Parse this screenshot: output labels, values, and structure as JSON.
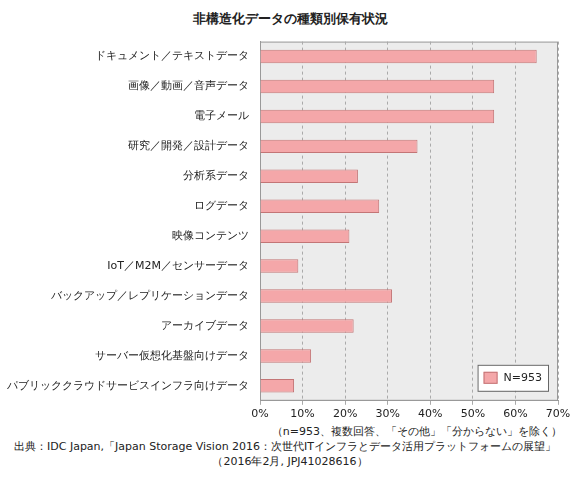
{
  "chart_data": {
    "type": "bar",
    "orientation": "horizontal",
    "title": "非構造化データの種類別保有状況",
    "categories": [
      "ドキュメント／テキストデータ",
      "画像／動画／音声データ",
      "電子メール",
      "研究／開発／設計データ",
      "分析系データ",
      "ログデータ",
      "映像コンテンツ",
      "IoT／M2M／センサーデータ",
      "バックアップ／レプリケーションデータ",
      "アーカイブデータ",
      "サーバー仮想化基盤向けデータ",
      "パブリッククラウドサービスインフラ向けデータ"
    ],
    "series": [
      {
        "name": "N=953",
        "color": "#f4a7a9",
        "values": [
          65,
          55,
          55,
          37,
          23,
          28,
          21,
          9,
          31,
          22,
          12,
          8
        ]
      }
    ],
    "xlim": [
      0,
      70
    ],
    "xticks": [
      {
        "value": 0,
        "label": "0%"
      },
      {
        "value": 10,
        "label": "10%"
      },
      {
        "value": 20,
        "label": "20%"
      },
      {
        "value": 30,
        "label": "30%"
      },
      {
        "value": 40,
        "label": "40%"
      },
      {
        "value": 50,
        "label": "50%"
      },
      {
        "value": 60,
        "label": "60%"
      },
      {
        "value": 70,
        "label": "70%"
      }
    ],
    "grid": true,
    "legend": "lower right",
    "note": "（n=953、複数回答、「その他」「分からない」を除く）",
    "source": [
      "出典：IDC Japan,「Japan Storage Vision 2016：次世代ITインフラとデータ活用プラットフォームの展望」",
      "（2016年2月, JPJ41028616）"
    ]
  }
}
